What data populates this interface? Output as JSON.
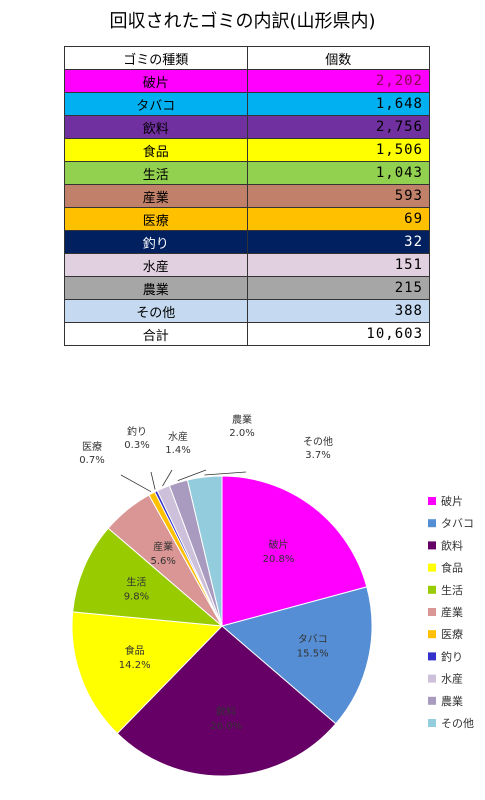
{
  "chart_data": [
    {
      "type": "table",
      "title": "回収されたゴミの内訳(山形県内)",
      "columns": [
        "ゴミの種類",
        "個数"
      ],
      "rows": [
        {
          "category": "破片",
          "count": "2,202",
          "color": "#ff00ff",
          "text_color": "#000000",
          "count_color": "#8b0a50"
        },
        {
          "category": "タバコ",
          "count": "1,648",
          "color": "#00b0f0",
          "text_color": "#000000",
          "count_color": "#000000"
        },
        {
          "category": "飲料",
          "count": "2,756",
          "color": "#7030a0",
          "text_color": "#000000",
          "count_color": "#000000"
        },
        {
          "category": "食品",
          "count": "1,506",
          "color": "#ffff00",
          "text_color": "#000000",
          "count_color": "#000000"
        },
        {
          "category": "生活",
          "count": "1,043",
          "color": "#92d050",
          "text_color": "#000000",
          "count_color": "#000000"
        },
        {
          "category": "産業",
          "count": "593",
          "color": "#c0806a",
          "text_color": "#000000",
          "count_color": "#000000"
        },
        {
          "category": "医療",
          "count": "69",
          "color": "#ffc000",
          "text_color": "#000000",
          "count_color": "#000000"
        },
        {
          "category": "釣り",
          "count": "32",
          "color": "#002060",
          "text_color": "#ffffff",
          "count_color": "#ffffff"
        },
        {
          "category": "水産",
          "count": "151",
          "color": "#e0d0e0",
          "text_color": "#000000",
          "count_color": "#000000"
        },
        {
          "category": "農業",
          "count": "215",
          "color": "#a6a6a6",
          "text_color": "#000000",
          "count_color": "#000000"
        },
        {
          "category": "その他",
          "count": "388",
          "color": "#c5d9f1",
          "text_color": "#000000",
          "count_color": "#000000"
        },
        {
          "category": "合計",
          "count": "10,603",
          "color": "#ffffff",
          "text_color": "#000000",
          "count_color": "#000000"
        }
      ]
    },
    {
      "type": "pie",
      "title": "",
      "legend_placement": "right",
      "slices": [
        {
          "label": "破片",
          "percent": 20.8,
          "percent_label": "20.8%",
          "color": "#ff00ff",
          "label_position": "inside"
        },
        {
          "label": "タバコ",
          "percent": 15.5,
          "percent_label": "15.5%",
          "color": "#558ed5",
          "label_position": "inside"
        },
        {
          "label": "飲料",
          "percent": 26.0,
          "percent_label": "26.0%",
          "color": "#660066",
          "label_position": "inside"
        },
        {
          "label": "食品",
          "percent": 14.2,
          "percent_label": "14.2%",
          "color": "#ffff00",
          "label_position": "inside"
        },
        {
          "label": "生活",
          "percent": 9.8,
          "percent_label": "9.8%",
          "color": "#99cc00",
          "label_position": "inside"
        },
        {
          "label": "産業",
          "percent": 5.6,
          "percent_label": "5.6%",
          "color": "#d99694",
          "label_position": "inside"
        },
        {
          "label": "医療",
          "percent": 0.7,
          "percent_label": "0.7%",
          "color": "#ffc000",
          "label_position": "outside"
        },
        {
          "label": "釣り",
          "percent": 0.3,
          "percent_label": "0.3%",
          "color": "#3333cc",
          "label_position": "outside"
        },
        {
          "label": "水産",
          "percent": 1.4,
          "percent_label": "1.4%",
          "color": "#ccc0da",
          "label_position": "outside"
        },
        {
          "label": "農業",
          "percent": 2.0,
          "percent_label": "2.0%",
          "color": "#a89bbf",
          "label_position": "outside"
        },
        {
          "label": "その他",
          "percent": 3.7,
          "percent_label": "3.7%",
          "color": "#93cddd",
          "label_position": "outside"
        }
      ]
    }
  ]
}
